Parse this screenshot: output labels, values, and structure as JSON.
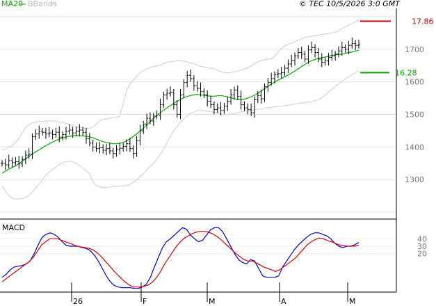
{
  "chart_data": [
    {
      "type": "ohlc",
      "legend": [
        {
          "label": "MA20",
          "color": "#00aa00"
        },
        {
          "label": "BBands",
          "color": "#bbbbbb"
        }
      ],
      "copyright": "© TEC 10/5/2026 3:0 GMT",
      "y_ticks": [
        1300,
        1400,
        1500,
        1600,
        1700
      ],
      "ylim": [
        1200,
        1800
      ],
      "annotations": [
        {
          "label": "17.86",
          "value": 1786,
          "color": "#cc0000"
        },
        {
          "label": "16.28",
          "value": 1628,
          "color": "#00aa00"
        }
      ],
      "x_ticks": [
        "26",
        "F",
        "M",
        "A",
        "M"
      ],
      "close": [
        1350,
        1345,
        1358,
        1352,
        1355,
        1348,
        1362,
        1375,
        1378,
        1432,
        1440,
        1448,
        1445,
        1440,
        1443,
        1438,
        1445,
        1430,
        1438,
        1448,
        1452,
        1443,
        1448,
        1452,
        1445,
        1425,
        1412,
        1400,
        1395,
        1398,
        1390,
        1395,
        1388,
        1380,
        1392,
        1396,
        1402,
        1410,
        1395,
        1380,
        1420,
        1450,
        1470,
        1488,
        1480,
        1495,
        1498,
        1530,
        1560,
        1565,
        1568,
        1530,
        1500,
        1560,
        1598,
        1620,
        1610,
        1588,
        1580,
        1570,
        1560,
        1540,
        1530,
        1515,
        1520,
        1512,
        1525,
        1540,
        1560,
        1575,
        1555,
        1530,
        1520,
        1515,
        1505,
        1545,
        1558,
        1548,
        1585,
        1598,
        1610,
        1622,
        1625,
        1628,
        1642,
        1655,
        1665,
        1680,
        1690,
        1685,
        1670,
        1698,
        1705,
        1690,
        1670,
        1660,
        1665,
        1675,
        1680,
        1685,
        1695,
        1705,
        1700,
        1712,
        1718,
        1712,
        1715
      ],
      "ma20": [
        1320,
        1326,
        1332,
        1337,
        1342,
        1349,
        1356,
        1364,
        1371,
        1378,
        1385,
        1391,
        1398,
        1404,
        1410,
        1415,
        1420,
        1424,
        1428,
        1431,
        1433,
        1434,
        1435,
        1434,
        1434,
        1433,
        1431,
        1428,
        1424,
        1420,
        1416,
        1414,
        1412,
        1410,
        1410,
        1411,
        1414,
        1419,
        1425,
        1432,
        1440,
        1449,
        1458,
        1468,
        1478,
        1488,
        1497,
        1505,
        1513,
        1520,
        1527,
        1534,
        1540,
        1546,
        1551,
        1555,
        1558,
        1560,
        1561,
        1560,
        1559,
        1557,
        1556,
        1556,
        1557,
        1558,
        1556,
        1554,
        1551,
        1548,
        1545,
        1545,
        1547,
        1550,
        1554,
        1559,
        1565,
        1572,
        1579,
        1586,
        1593,
        1599,
        1605,
        1610,
        1616,
        1621,
        1627,
        1633,
        1640,
        1647,
        1654,
        1660,
        1665,
        1669,
        1672,
        1674,
        1676,
        1679,
        1681,
        1683,
        1684,
        1685,
        1688,
        1690,
        1692,
        1694,
        1697
      ],
      "bb_upper": [
        1390,
        1395,
        1400,
        1410,
        1420,
        1440,
        1460,
        1470,
        1475,
        1478,
        1478,
        1479,
        1480,
        1480,
        1478,
        1476,
        1474,
        1470,
        1466,
        1462,
        1460,
        1458,
        1457,
        1460,
        1470,
        1482,
        1485,
        1487,
        1490,
        1492,
        1493,
        1540,
        1580,
        1600,
        1612,
        1625,
        1635,
        1640,
        1645,
        1648,
        1650,
        1655,
        1660,
        1662,
        1664,
        1665,
        1664,
        1662,
        1658,
        1655,
        1650,
        1647,
        1645,
        1642,
        1640,
        1635,
        1630,
        1628,
        1628,
        1630,
        1632,
        1636,
        1640,
        1645,
        1652,
        1660,
        1665,
        1668,
        1670,
        1672,
        1685,
        1700,
        1710,
        1715,
        1720,
        1725,
        1730,
        1735,
        1738,
        1740,
        1742,
        1744,
        1746,
        1748,
        1750,
        1752,
        1758,
        1765,
        1772,
        1778,
        1784,
        1790
      ],
      "bb_lower": [
        1280,
        1260,
        1245,
        1240,
        1240,
        1243,
        1250,
        1262,
        1278,
        1295,
        1312,
        1325,
        1335,
        1345,
        1352,
        1356,
        1356,
        1350,
        1342,
        1330,
        1320,
        1290,
        1280,
        1276,
        1275,
        1278,
        1280,
        1280,
        1280,
        1283,
        1290,
        1300,
        1312,
        1325,
        1340,
        1352,
        1370,
        1390,
        1415,
        1440,
        1458,
        1476,
        1490,
        1500,
        1507,
        1512,
        1512,
        1510,
        1508,
        1506,
        1502,
        1500,
        1500,
        1502,
        1505,
        1508,
        1510,
        1512,
        1514,
        1516,
        1518,
        1520,
        1522,
        1524,
        1525,
        1527,
        1529,
        1531,
        1533,
        1535,
        1537,
        1539,
        1542,
        1547,
        1556,
        1568,
        1580,
        1590,
        1600,
        1610,
        1618,
        1626,
        1634
      ]
    },
    {
      "type": "line",
      "title": "MACD",
      "y_ticks": [
        20,
        30,
        40
      ],
      "ylim": [
        -30,
        60
      ],
      "series": [
        {
          "color": "#0000cc",
          "values": [
            -12,
            -8,
            -2,
            2,
            3,
            4,
            6,
            10,
            20,
            32,
            42,
            46,
            48,
            46,
            42,
            36,
            31,
            30,
            30,
            30,
            28,
            27,
            24,
            18,
            10,
            0,
            -10,
            -18,
            -23,
            -25,
            -26,
            -26,
            -26,
            -27,
            -27,
            -25,
            -21,
            -12,
            2,
            15,
            28,
            36,
            40,
            45,
            50,
            55,
            53,
            45,
            40,
            36,
            38,
            45,
            52,
            55,
            55,
            50,
            40,
            30,
            20,
            12,
            8,
            6,
            12,
            10,
            0,
            -10,
            -12,
            -12,
            -12,
            -10,
            2,
            10,
            18,
            26,
            32,
            37,
            42,
            46,
            48,
            48,
            46,
            44,
            40,
            34,
            30,
            28,
            30,
            30,
            32,
            35
          ]
        },
        {
          "color": "#dd0000",
          "values": [
            -18,
            -14,
            -10,
            -6,
            -2,
            2,
            6,
            10,
            16,
            24,
            32,
            36,
            40,
            40,
            40,
            38,
            36,
            34,
            32,
            30,
            29,
            28,
            27,
            25,
            21,
            16,
            10,
            4,
            -2,
            -8,
            -13,
            -18,
            -22,
            -25,
            -25,
            -25,
            -24,
            -22,
            -18,
            -12,
            -4,
            6,
            14,
            22,
            30,
            36,
            41,
            44,
            47,
            49,
            50,
            50,
            49,
            47,
            44,
            40,
            35,
            30,
            25,
            20,
            16,
            12,
            10,
            10,
            8,
            5,
            2,
            0,
            -2,
            -4,
            -2,
            2,
            6,
            10,
            14,
            20,
            26,
            32,
            36,
            39,
            41,
            40,
            38,
            36,
            34,
            32,
            31,
            30,
            30,
            30,
            31
          ]
        }
      ]
    }
  ],
  "macd_label": "MACD"
}
